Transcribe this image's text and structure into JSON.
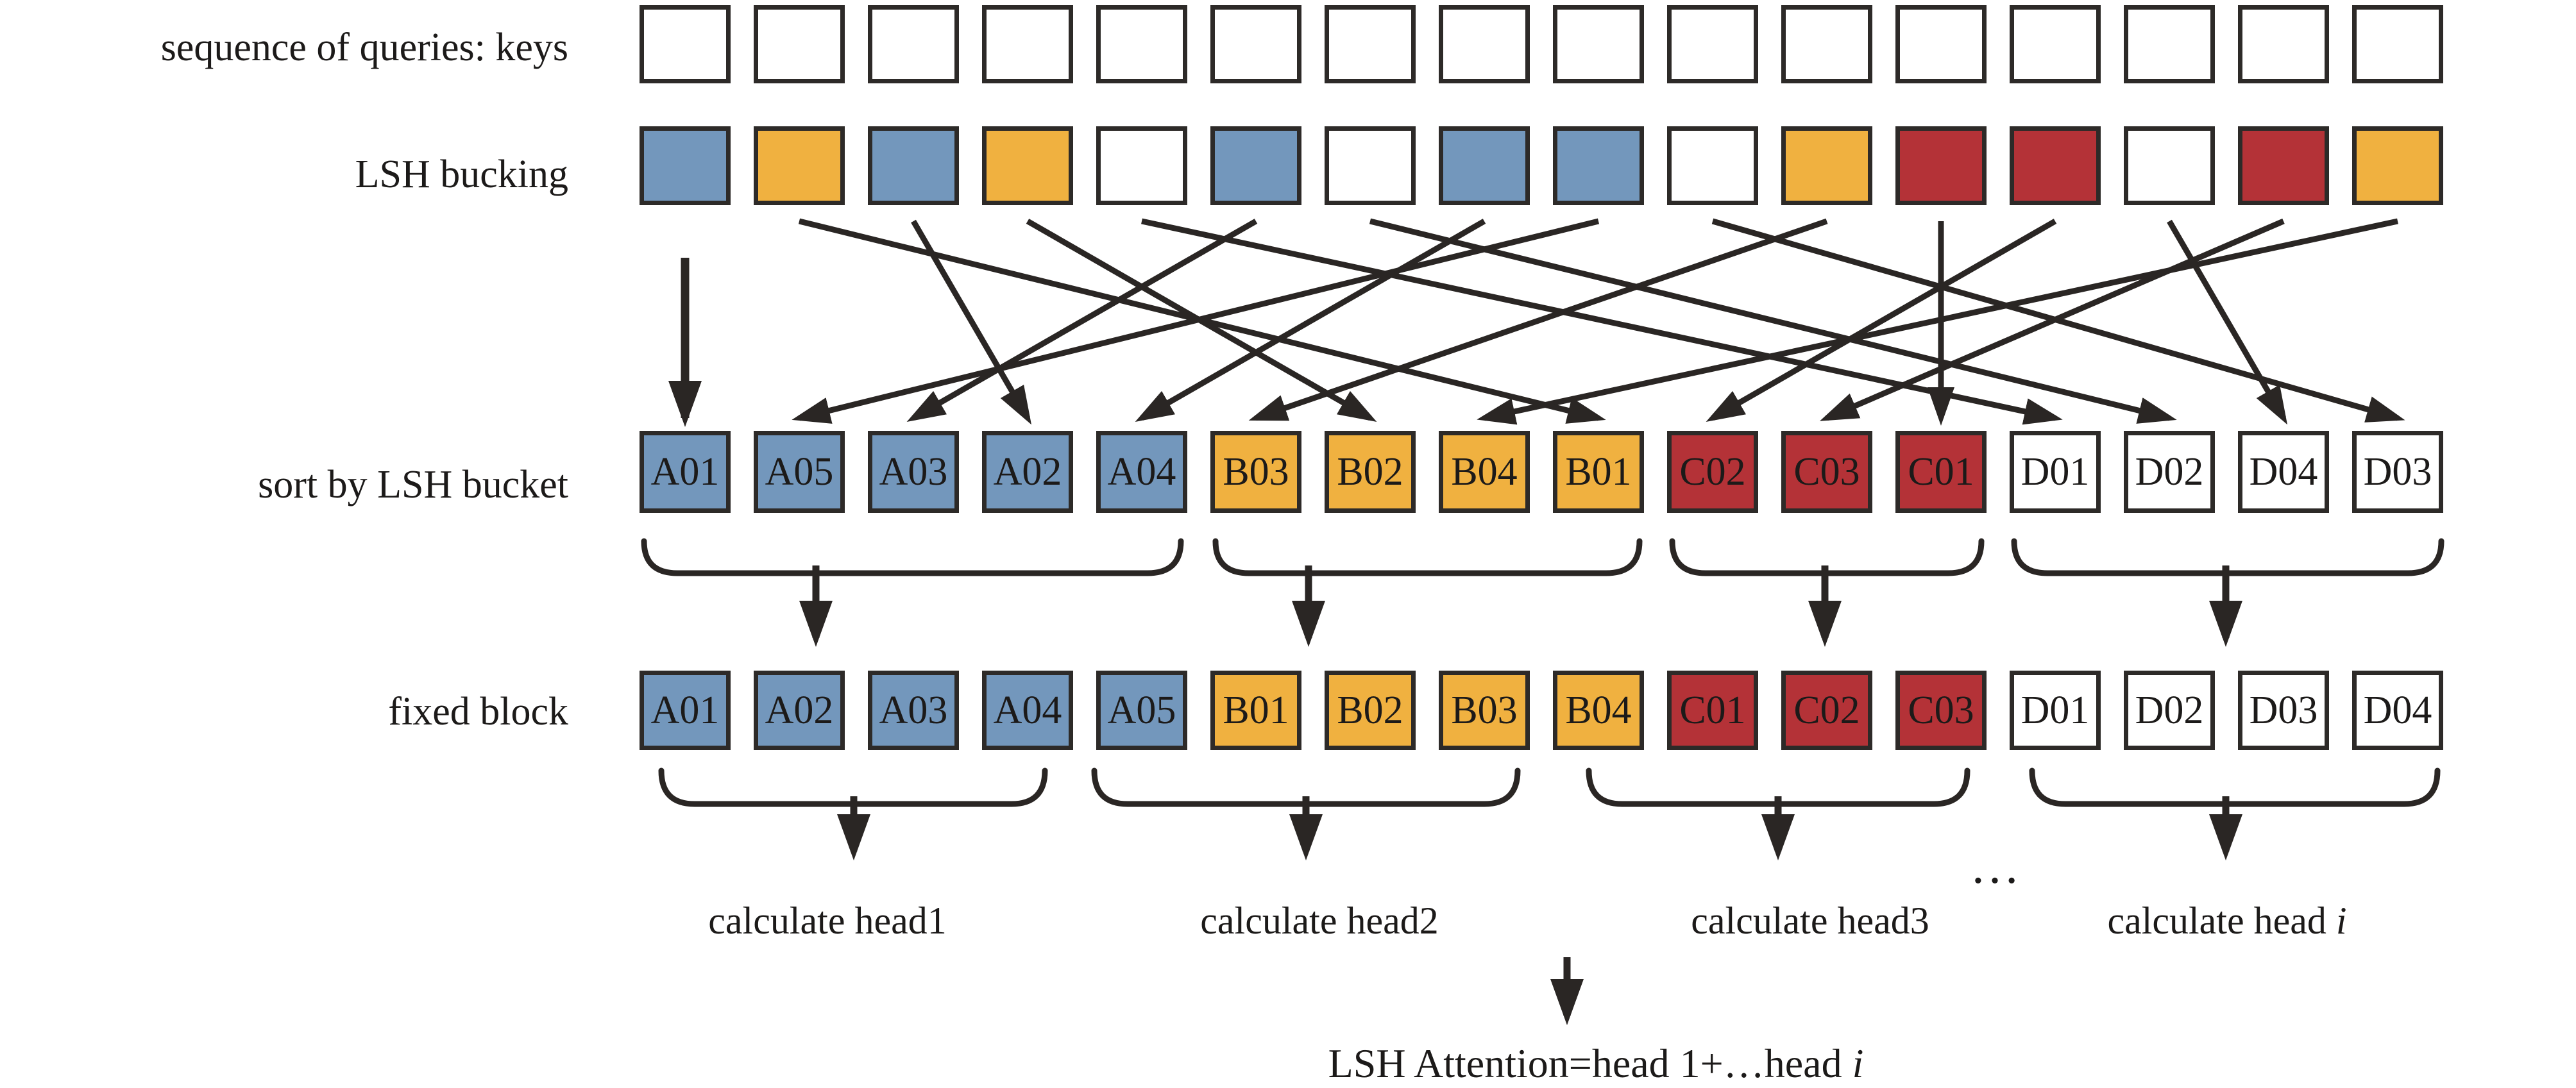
{
  "colors": {
    "blue": "#7397BC",
    "orange": "#F0B140",
    "red": "#B43237",
    "white": "#FFFFFF",
    "box_border": "#2D2A28",
    "line": "#2A2624",
    "text": "#1C1A19",
    "background": "#FFFFFF"
  },
  "row_labels": {
    "queries": "sequence of queries: keys",
    "bucketing": "LSH bucking",
    "sorted": "sort by LSH bucket",
    "fixed": "fixed block"
  },
  "queries_row": {
    "count": 16,
    "color": "white"
  },
  "bucket_row": [
    "blue",
    "orange",
    "blue",
    "orange",
    "white",
    "blue",
    "white",
    "blue",
    "blue",
    "white",
    "orange",
    "red",
    "red",
    "white",
    "red",
    "orange"
  ],
  "sorted_row": [
    {
      "label": "A01",
      "color": "blue"
    },
    {
      "label": "A05",
      "color": "blue"
    },
    {
      "label": "A03",
      "color": "blue"
    },
    {
      "label": "A02",
      "color": "blue"
    },
    {
      "label": "A04",
      "color": "blue"
    },
    {
      "label": "B03",
      "color": "orange"
    },
    {
      "label": "B02",
      "color": "orange"
    },
    {
      "label": "B04",
      "color": "orange"
    },
    {
      "label": "B01",
      "color": "orange"
    },
    {
      "label": "C02",
      "color": "red"
    },
    {
      "label": "C03",
      "color": "red"
    },
    {
      "label": "C01",
      "color": "red"
    },
    {
      "label": "D01",
      "color": "white"
    },
    {
      "label": "D02",
      "color": "white"
    },
    {
      "label": "D04",
      "color": "white"
    },
    {
      "label": "D03",
      "color": "white"
    }
  ],
  "fixed_row": [
    {
      "label": "A01",
      "color": "blue"
    },
    {
      "label": "A02",
      "color": "blue"
    },
    {
      "label": "A03",
      "color": "blue"
    },
    {
      "label": "A04",
      "color": "blue"
    },
    {
      "label": "A05",
      "color": "blue"
    },
    {
      "label": "B01",
      "color": "orange"
    },
    {
      "label": "B02",
      "color": "orange"
    },
    {
      "label": "B03",
      "color": "orange"
    },
    {
      "label": "B04",
      "color": "orange"
    },
    {
      "label": "C01",
      "color": "red"
    },
    {
      "label": "C02",
      "color": "red"
    },
    {
      "label": "C03",
      "color": "red"
    },
    {
      "label": "D01",
      "color": "white"
    },
    {
      "label": "D02",
      "color": "white"
    },
    {
      "label": "D03",
      "color": "white"
    },
    {
      "label": "D04",
      "color": "white"
    }
  ],
  "sort_mapping": [
    [
      1,
      1
    ],
    [
      9,
      2
    ],
    [
      6,
      3
    ],
    [
      3,
      4
    ],
    [
      8,
      5
    ],
    [
      11,
      6
    ],
    [
      4,
      7
    ],
    [
      16,
      8
    ],
    [
      2,
      9
    ],
    [
      13,
      10
    ],
    [
      15,
      11
    ],
    [
      12,
      12
    ],
    [
      5,
      13
    ],
    [
      7,
      14
    ],
    [
      14,
      15
    ],
    [
      10,
      16
    ]
  ],
  "sorted_groups": [
    {
      "from": 1,
      "to": 5
    },
    {
      "from": 6,
      "to": 9
    },
    {
      "from": 10,
      "to": 12
    },
    {
      "from": 13,
      "to": 16
    }
  ],
  "fixed_groups": [
    {
      "from": 1,
      "to": 4
    },
    {
      "from": 5,
      "to": 8
    },
    {
      "from": 9,
      "to": 12
    },
    {
      "from": 13,
      "to": 16
    }
  ],
  "head_labels": [
    {
      "text": "calculate head1"
    },
    {
      "text": "calculate head2"
    },
    {
      "text": "calculate head3"
    },
    {
      "text": "calculate head ",
      "italic": "i"
    }
  ],
  "ellipsis": "…",
  "final_label": {
    "prefix": "LSH Attention=head 1+…head ",
    "italic": "i"
  }
}
